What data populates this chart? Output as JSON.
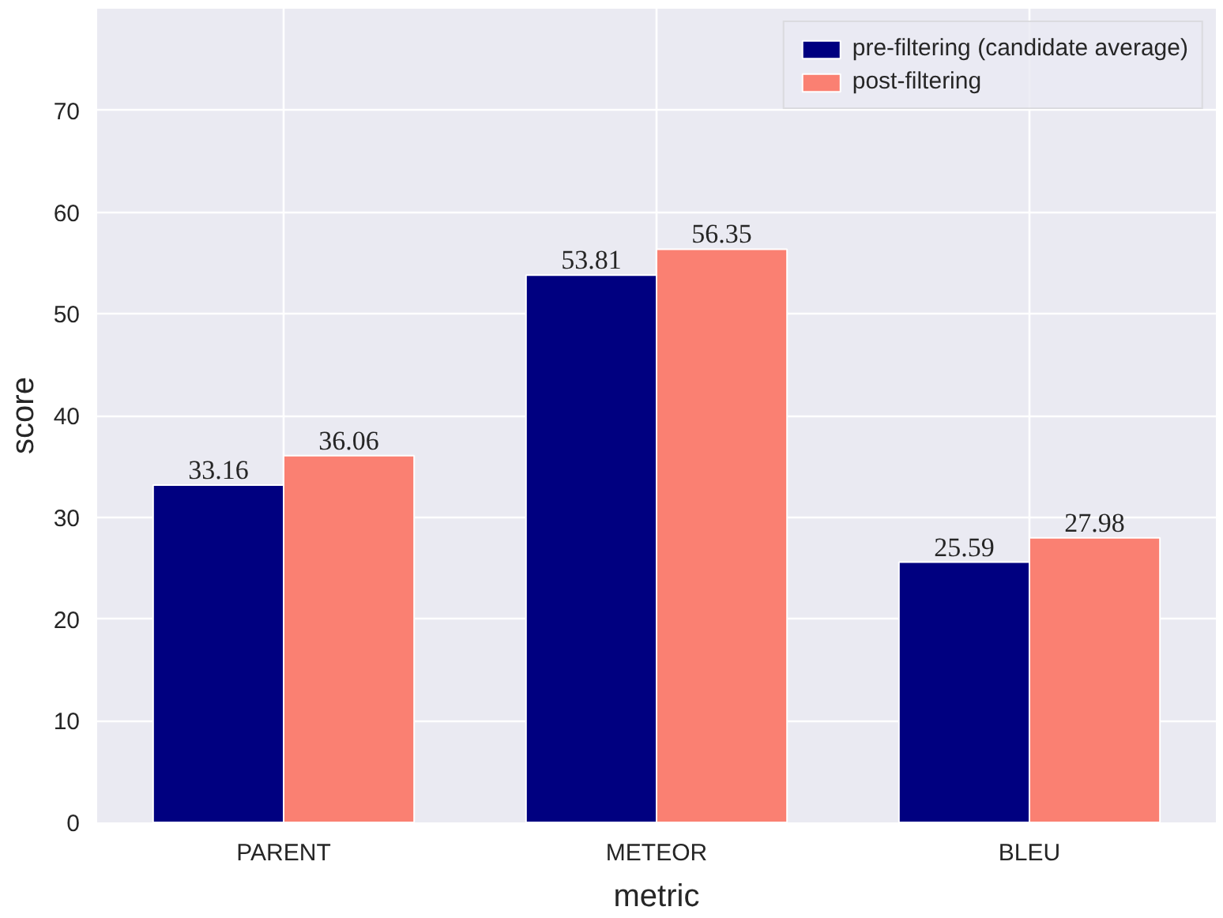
{
  "chart_data": {
    "type": "bar",
    "xlabel": "metric",
    "ylabel": "score",
    "categories": [
      "PARENT",
      "METEOR",
      "BLEU"
    ],
    "series": [
      {
        "name": "pre-filtering (candidate average)",
        "color": "#000080",
        "values": [
          33.16,
          53.81,
          25.59
        ]
      },
      {
        "name": "post-filtering",
        "color": "#fa8072",
        "values": [
          36.06,
          56.35,
          27.98
        ]
      }
    ],
    "ylim": [
      0,
      80
    ],
    "yticks": [
      0,
      10,
      20,
      30,
      40,
      50,
      60,
      70
    ],
    "grid": true,
    "legend": "top right",
    "data_labels": true
  }
}
